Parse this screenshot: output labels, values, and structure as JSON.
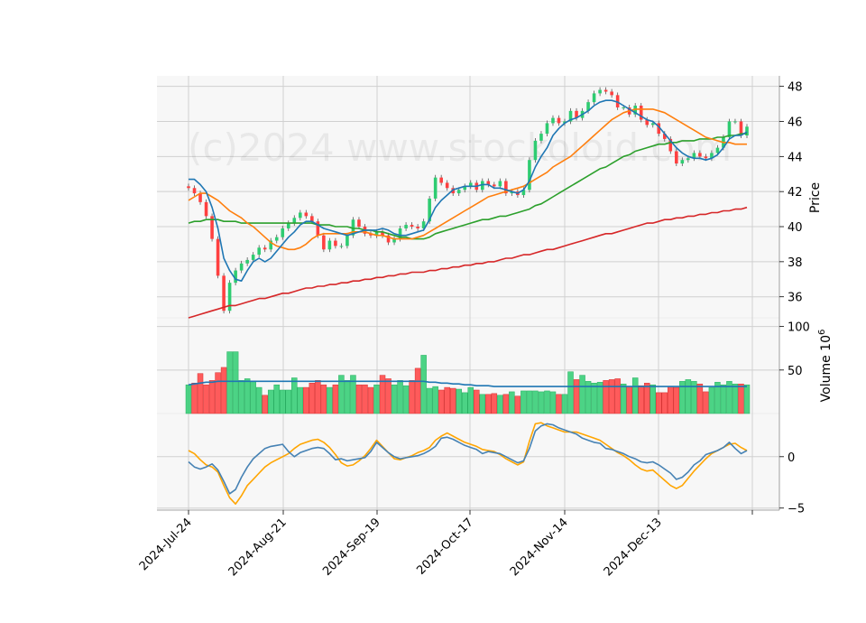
{
  "chart_data": {
    "type": "candlestick",
    "watermark": "(c)2024 www.stockoloid.com",
    "x_tick_labels": [
      "2024-Jul-24",
      "2024-Aug-21",
      "2024-Sep-19",
      "2024-Oct-17",
      "2024-Nov-14",
      "2024-Dec-13"
    ],
    "price_panel": {
      "ylabel": "Price",
      "ylim": [
        34.8,
        48.6
      ],
      "yticks": [
        36,
        38,
        40,
        42,
        44,
        46,
        48
      ],
      "close": [
        42.2,
        41.9,
        41.4,
        40.6,
        39.3,
        37.2,
        35.2,
        36.8,
        37.5,
        37.9,
        38.1,
        38.4,
        38.8,
        38.7,
        39.2,
        39.4,
        39.9,
        40.2,
        40.5,
        40.8,
        40.6,
        40.3,
        39.5,
        38.7,
        39.2,
        38.9,
        38.9,
        39.5,
        40.4,
        40.0,
        39.6,
        39.5,
        39.7,
        39.5,
        39.1,
        39.3,
        39.9,
        40.1,
        40.0,
        39.9,
        40.3,
        41.6,
        42.8,
        42.5,
        42.2,
        41.9,
        42.1,
        42.3,
        42.5,
        42.1,
        42.6,
        42.4,
        42.3,
        42.6,
        41.9,
        42.0,
        41.8,
        42.1,
        43.8,
        44.9,
        45.3,
        45.9,
        46.2,
        45.9,
        46.0,
        46.6,
        46.2,
        46.6,
        47.1,
        47.6,
        47.8,
        47.7,
        47.5,
        46.8,
        46.8,
        46.4,
        46.9,
        46.1,
        45.8,
        45.9,
        45.3,
        45.0,
        44.3,
        43.6,
        43.8,
        43.9,
        44.2,
        44.0,
        43.9,
        44.2,
        44.5,
        45.1,
        46.0,
        46.0,
        45.2,
        45.7
      ],
      "ma_5": [
        42.7,
        42.7,
        42.4,
        42.0,
        41.1,
        39.9,
        38.2,
        37.5,
        37.0,
        36.9,
        37.5,
        38.0,
        38.2,
        38.0,
        38.2,
        38.6,
        39.0,
        39.4,
        39.7,
        40.1,
        40.3,
        40.3,
        40.1,
        39.9,
        39.8,
        39.7,
        39.6,
        39.5,
        39.6,
        39.7,
        39.8,
        39.8,
        39.8,
        39.9,
        39.8,
        39.6,
        39.5,
        39.5,
        39.6,
        39.7,
        39.8,
        40.4,
        41.1,
        41.5,
        41.8,
        42.1,
        42.2,
        42.3,
        42.3,
        42.3,
        42.4,
        42.4,
        42.2,
        42.2,
        42.1,
        42.0,
        41.9,
        42.1,
        42.6,
        43.4,
        44.0,
        44.5,
        45.2,
        45.6,
        45.9,
        46.1,
        46.2,
        46.4,
        46.6,
        46.9,
        47.1,
        47.2,
        47.2,
        47.1,
        46.9,
        46.7,
        46.5,
        46.3,
        46.1,
        46.0,
        45.7,
        45.3,
        44.9,
        44.5,
        44.2,
        44.0,
        43.9,
        43.9,
        43.8,
        43.9,
        44.1,
        44.5,
        45.0,
        45.2,
        45.2,
        45.4
      ],
      "ma_20": [
        41.5,
        41.7,
        41.9,
        41.9,
        41.7,
        41.5,
        41.2,
        40.9,
        40.7,
        40.5,
        40.2,
        40.0,
        39.7,
        39.4,
        39.1,
        38.9,
        38.8,
        38.7,
        38.7,
        38.8,
        39.0,
        39.3,
        39.5,
        39.6,
        39.6,
        39.6,
        39.6,
        39.6,
        39.7,
        39.7,
        39.7,
        39.6,
        39.5,
        39.5,
        39.4,
        39.3,
        39.3,
        39.3,
        39.3,
        39.4,
        39.5,
        39.7,
        39.9,
        40.1,
        40.3,
        40.5,
        40.7,
        40.9,
        41.1,
        41.3,
        41.5,
        41.7,
        41.8,
        41.9,
        42.0,
        42.1,
        42.2,
        42.3,
        42.5,
        42.7,
        42.9,
        43.1,
        43.4,
        43.6,
        43.8,
        44.0,
        44.3,
        44.6,
        44.9,
        45.2,
        45.5,
        45.8,
        46.1,
        46.3,
        46.5,
        46.6,
        46.7,
        46.7,
        46.7,
        46.7,
        46.6,
        46.5,
        46.3,
        46.1,
        45.9,
        45.7,
        45.5,
        45.3,
        45.1,
        45.0,
        44.9,
        44.8,
        44.8,
        44.7,
        44.7,
        44.7
      ],
      "ma_50": [
        40.2,
        40.3,
        40.3,
        40.4,
        40.4,
        40.4,
        40.3,
        40.3,
        40.3,
        40.2,
        40.2,
        40.2,
        40.2,
        40.2,
        40.2,
        40.2,
        40.2,
        40.2,
        40.2,
        40.2,
        40.2,
        40.2,
        40.1,
        40.1,
        40.1,
        40.0,
        40.0,
        40.0,
        39.9,
        39.9,
        39.8,
        39.8,
        39.7,
        39.7,
        39.6,
        39.5,
        39.4,
        39.4,
        39.3,
        39.3,
        39.3,
        39.4,
        39.6,
        39.7,
        39.8,
        39.9,
        40.0,
        40.1,
        40.2,
        40.3,
        40.4,
        40.4,
        40.5,
        40.6,
        40.6,
        40.7,
        40.8,
        40.9,
        41.0,
        41.2,
        41.3,
        41.5,
        41.7,
        41.9,
        42.1,
        42.3,
        42.5,
        42.7,
        42.9,
        43.1,
        43.3,
        43.4,
        43.6,
        43.8,
        44.0,
        44.1,
        44.3,
        44.4,
        44.5,
        44.6,
        44.7,
        44.7,
        44.8,
        44.8,
        44.9,
        44.9,
        44.9,
        45.0,
        45.0,
        45.0,
        45.1,
        45.1,
        45.2,
        45.2,
        45.3,
        45.3
      ],
      "ma_200": [
        34.8,
        34.9,
        35.0,
        35.1,
        35.2,
        35.3,
        35.4,
        35.5,
        35.5,
        35.6,
        35.7,
        35.8,
        35.9,
        35.9,
        36.0,
        36.1,
        36.2,
        36.2,
        36.3,
        36.4,
        36.5,
        36.5,
        36.6,
        36.6,
        36.7,
        36.7,
        36.8,
        36.8,
        36.9,
        36.9,
        37.0,
        37.0,
        37.1,
        37.1,
        37.2,
        37.2,
        37.3,
        37.3,
        37.4,
        37.4,
        37.4,
        37.5,
        37.5,
        37.6,
        37.6,
        37.7,
        37.7,
        37.8,
        37.8,
        37.9,
        37.9,
        38.0,
        38.0,
        38.1,
        38.2,
        38.2,
        38.3,
        38.4,
        38.4,
        38.5,
        38.6,
        38.7,
        38.7,
        38.8,
        38.9,
        39.0,
        39.1,
        39.2,
        39.3,
        39.4,
        39.5,
        39.6,
        39.6,
        39.7,
        39.8,
        39.9,
        40.0,
        40.1,
        40.2,
        40.2,
        40.3,
        40.4,
        40.4,
        40.5,
        40.5,
        40.6,
        40.6,
        40.7,
        40.7,
        40.8,
        40.8,
        40.9,
        40.9,
        41.0,
        41.0,
        41.1
      ],
      "colors": {
        "up": "#2ecc71",
        "down": "#ff4040",
        "ma_5": "#1f77b4",
        "ma_20": "#ff7f0e",
        "ma_50": "#2ca02c",
        "ma_200": "#d62728"
      }
    },
    "volume_panel": {
      "ylabel": "Volume  10^6",
      "ylim": [
        0,
        110
      ],
      "yticks": [
        50,
        100
      ],
      "values": [
        33,
        35,
        46,
        33,
        38,
        47,
        53,
        71,
        71,
        38,
        40,
        37,
        30,
        21,
        27,
        33,
        27,
        27,
        41,
        30,
        30,
        35,
        38,
        33,
        30,
        33,
        44,
        38,
        44,
        33,
        33,
        30,
        33,
        44,
        40,
        33,
        38,
        32,
        38,
        52,
        67,
        29,
        31,
        27,
        30,
        29,
        28,
        24,
        30,
        27,
        22,
        22,
        23,
        21,
        22,
        25,
        20,
        26,
        26,
        26,
        25,
        26,
        25,
        22,
        22,
        48,
        39,
        44,
        37,
        35,
        36,
        38,
        39,
        40,
        34,
        31,
        41,
        32,
        35,
        33,
        24,
        24,
        31,
        30,
        37,
        39,
        37,
        34,
        25,
        30,
        36,
        33,
        37,
        34,
        34,
        33
      ],
      "avg_line": [
        33,
        34,
        35,
        36,
        36,
        37,
        37,
        37,
        37,
        37,
        37,
        37,
        37,
        37,
        37,
        37,
        37,
        37,
        37,
        37,
        37,
        37,
        37,
        37,
        37,
        37,
        37,
        37,
        37,
        37,
        37,
        37,
        37,
        37,
        37,
        37,
        37,
        37,
        37,
        37,
        37,
        36,
        36,
        35,
        35,
        34,
        34,
        33,
        33,
        32,
        32,
        32,
        31,
        31,
        31,
        31,
        31,
        31,
        31,
        31,
        31,
        31,
        31,
        31,
        31,
        31,
        31,
        31,
        31,
        31,
        31,
        31,
        31,
        31,
        31,
        31,
        31,
        31,
        31,
        31,
        31,
        31,
        31,
        31,
        31,
        31,
        31,
        31,
        31,
        31,
        31,
        31,
        31,
        31,
        31,
        31
      ],
      "colors": {
        "avg_line": "#1f77b4"
      }
    },
    "oscillator_panel": {
      "ylim": [
        -5.2,
        4.2
      ],
      "yticks": [
        -5,
        0
      ],
      "series_a": [
        -0.5,
        -1.0,
        -1.2,
        -1.0,
        -0.7,
        -1.3,
        -2.4,
        -3.6,
        -3.2,
        -2.0,
        -1.0,
        -0.2,
        0.3,
        0.8,
        1.0,
        1.1,
        1.2,
        0.5,
        0.0,
        0.4,
        0.6,
        0.8,
        0.9,
        0.8,
        0.3,
        -0.3,
        -0.2,
        -0.4,
        -0.3,
        -0.2,
        -0.1,
        0.5,
        1.4,
        0.9,
        0.4,
        0.0,
        -0.2,
        -0.1,
        0.0,
        0.1,
        0.3,
        0.6,
        1.0,
        1.8,
        1.9,
        1.7,
        1.4,
        1.1,
        0.9,
        0.7,
        0.3,
        0.5,
        0.4,
        0.3,
        0.0,
        -0.3,
        -0.6,
        -0.4,
        0.8,
        2.5,
        3.0,
        3.2,
        3.1,
        2.8,
        2.6,
        2.4,
        2.2,
        1.8,
        1.6,
        1.4,
        1.3,
        0.8,
        0.7,
        0.5,
        0.3,
        0.0,
        -0.2,
        -0.5,
        -0.6,
        -0.5,
        -0.8,
        -1.2,
        -1.6,
        -2.2,
        -2.0,
        -1.5,
        -0.8,
        -0.4,
        0.2,
        0.4,
        0.6,
        0.9,
        1.4,
        0.8,
        0.3,
        0.6
      ],
      "series_b": [
        0.6,
        0.3,
        -0.3,
        -0.8,
        -1.0,
        -1.5,
        -2.8,
        -4.0,
        -4.6,
        -3.8,
        -2.8,
        -2.2,
        -1.6,
        -1.0,
        -0.6,
        -0.3,
        0.0,
        0.3,
        0.8,
        1.2,
        1.4,
        1.6,
        1.7,
        1.4,
        0.9,
        0.2,
        -0.6,
        -0.9,
        -0.8,
        -0.4,
        0.1,
        0.8,
        1.6,
        1.0,
        0.4,
        -0.2,
        -0.3,
        -0.1,
        0.1,
        0.4,
        0.6,
        0.9,
        1.6,
        2.0,
        2.3,
        2.0,
        1.7,
        1.4,
        1.2,
        1.0,
        0.7,
        0.6,
        0.5,
        0.2,
        -0.2,
        -0.5,
        -0.8,
        -0.5,
        1.5,
        3.2,
        3.3,
        3.0,
        2.8,
        2.6,
        2.4,
        2.4,
        2.4,
        2.2,
        2.0,
        1.8,
        1.6,
        1.2,
        0.8,
        0.4,
        0.1,
        -0.3,
        -0.8,
        -1.2,
        -1.4,
        -1.3,
        -1.8,
        -2.3,
        -2.8,
        -3.1,
        -2.8,
        -2.1,
        -1.4,
        -0.8,
        -0.2,
        0.3,
        0.6,
        0.9,
        1.2,
        1.3,
        0.9,
        0.6
      ],
      "colors": {
        "series_a": "#4682b4",
        "series_b": "#ffa500"
      }
    }
  }
}
